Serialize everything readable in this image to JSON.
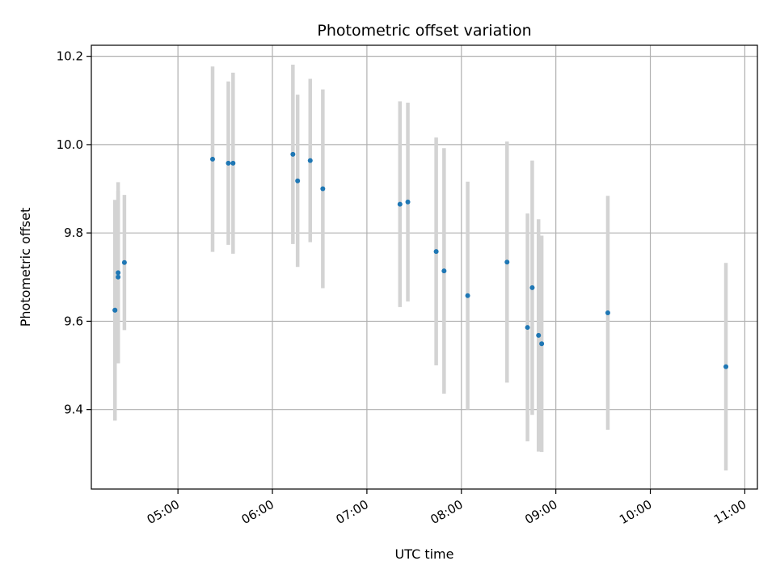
{
  "chart_data": {
    "type": "scatter",
    "title": "Photometric offset variation",
    "xlabel": "UTC time",
    "ylabel": "Photometric offset",
    "x_ticks": [
      "05:00",
      "06:00",
      "07:00",
      "08:00",
      "09:00",
      "10:00",
      "11:00"
    ],
    "y_ticks": [
      "9.4",
      "9.6",
      "9.8",
      "10.0",
      "10.2"
    ],
    "xlim": [
      "04:05",
      "11:08"
    ],
    "ylim": [
      9.22,
      10.225
    ],
    "grid": true,
    "colors": {
      "points": "#1f77b4",
      "errorbars": "#d3d3d3",
      "grid": "#b0b0b0"
    },
    "series": [
      {
        "points": [
          {
            "x": "04:20",
            "y": 9.625,
            "err": 0.25
          },
          {
            "x": "04:20",
            "y": 9.625,
            "err": 0.245
          },
          {
            "x": "04:22",
            "y": 9.71,
            "err": 0.205
          },
          {
            "x": "04:22",
            "y": 9.7,
            "err": 0.195
          },
          {
            "x": "04:26",
            "y": 9.733,
            "err": 0.153
          },
          {
            "x": "05:22",
            "y": 9.967,
            "err": 0.21
          },
          {
            "x": "05:32",
            "y": 9.958,
            "err": 0.185
          },
          {
            "x": "05:35",
            "y": 9.958,
            "err": 0.205
          },
          {
            "x": "06:13",
            "y": 9.978,
            "err": 0.203
          },
          {
            "x": "06:16",
            "y": 9.918,
            "err": 0.195
          },
          {
            "x": "06:24",
            "y": 9.964,
            "err": 0.185
          },
          {
            "x": "06:32",
            "y": 9.9,
            "err": 0.225
          },
          {
            "x": "07:21",
            "y": 9.865,
            "err": 0.233
          },
          {
            "x": "07:26",
            "y": 9.87,
            "err": 0.225
          },
          {
            "x": "07:44",
            "y": 9.758,
            "err": 0.258
          },
          {
            "x": "07:49",
            "y": 9.714,
            "err": 0.278
          },
          {
            "x": "08:04",
            "y": 9.658,
            "err": 0.258
          },
          {
            "x": "08:29",
            "y": 9.734,
            "err": 0.273
          },
          {
            "x": "08:42",
            "y": 9.586,
            "err": 0.258
          },
          {
            "x": "08:45",
            "y": 9.676,
            "err": 0.288
          },
          {
            "x": "08:49",
            "y": 9.568,
            "err": 0.263
          },
          {
            "x": "08:51",
            "y": 9.549,
            "err": 0.245
          },
          {
            "x": "09:33",
            "y": 9.619,
            "err": 0.265
          },
          {
            "x": "10:48",
            "y": 9.497,
            "err": 0.235
          }
        ]
      }
    ]
  }
}
